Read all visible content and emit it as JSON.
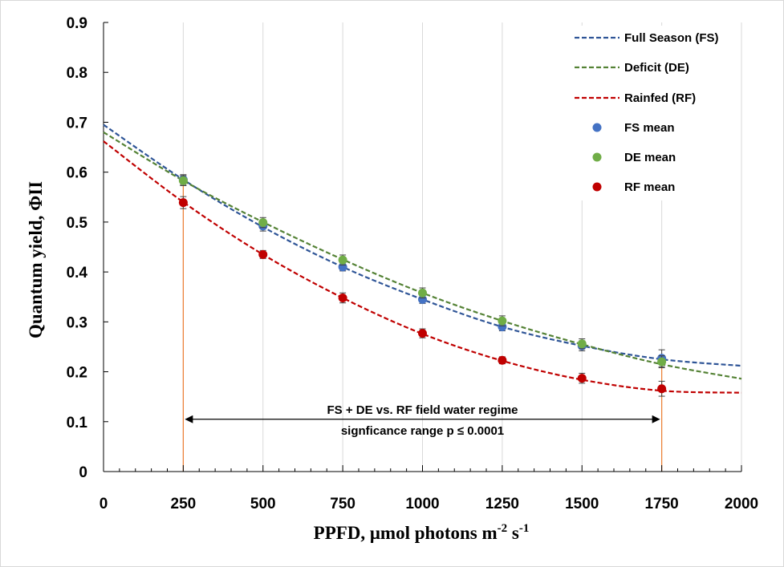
{
  "chart_data": {
    "type": "scatter",
    "xlabel": "PPFD, μmol photons m",
    "xlabel_sup1": "-2",
    "xlabel_mid": " s",
    "xlabel_sup2": "-1",
    "ylabel": "Quantum yield, ΦII",
    "xlim": [
      0,
      2000
    ],
    "ylim": [
      0,
      0.9
    ],
    "x_ticks": [
      0,
      250,
      500,
      750,
      1000,
      1250,
      1500,
      1750,
      2000
    ],
    "x_tick_labels": [
      "0",
      "250",
      "500",
      "750",
      "1000",
      "1250",
      "1500",
      "1750",
      "2000"
    ],
    "y_ticks": [
      0,
      0.1,
      0.2,
      0.3,
      0.4,
      0.5,
      0.6,
      0.7,
      0.8,
      0.9
    ],
    "y_tick_labels": [
      "0",
      "0.1",
      "0.2",
      "0.3",
      "0.4",
      "0.5",
      "0.6",
      "0.7",
      "0.8",
      "0.9"
    ],
    "grid": "vertical",
    "legend_position": "top-right",
    "x": [
      250,
      500,
      750,
      1000,
      1250,
      1500,
      1750
    ],
    "fits": [
      {
        "name": "Full Season (FS)",
        "color": "#2f5597",
        "x": [
          0,
          250,
          500,
          750,
          1000,
          1250,
          1500,
          1750,
          2000
        ],
        "y": [
          0.695,
          0.585,
          0.49,
          0.41,
          0.345,
          0.29,
          0.252,
          0.225,
          0.212
        ]
      },
      {
        "name": "Deficit (DE)",
        "color": "#548235",
        "x": [
          0,
          250,
          500,
          750,
          1000,
          1250,
          1500,
          1750,
          2000
        ],
        "y": [
          0.68,
          0.583,
          0.5,
          0.425,
          0.358,
          0.302,
          0.255,
          0.215,
          0.186
        ]
      },
      {
        "name": "Rainfed (RF)",
        "color": "#c00000",
        "x": [
          0,
          250,
          500,
          750,
          1000,
          1250,
          1500,
          1750,
          2000
        ],
        "y": [
          0.662,
          0.54,
          0.435,
          0.348,
          0.276,
          0.222,
          0.184,
          0.162,
          0.158
        ]
      }
    ],
    "series": [
      {
        "name": "FS mean",
        "color": "#4472c4",
        "values": [
          0.585,
          0.492,
          0.41,
          0.345,
          0.29,
          0.252,
          0.227
        ],
        "errors": [
          0.01,
          0.01,
          0.008,
          0.008,
          0.008,
          0.01,
          0.017
        ]
      },
      {
        "name": "DE mean",
        "color": "#70ad47",
        "values": [
          0.583,
          0.499,
          0.424,
          0.358,
          0.302,
          0.256,
          0.22
        ],
        "errors": [
          0.01,
          0.01,
          0.01,
          0.01,
          0.01,
          0.01,
          0.012
        ]
      },
      {
        "name": "RF mean",
        "color": "#c00000",
        "values": [
          0.539,
          0.435,
          0.348,
          0.277,
          0.223,
          0.187,
          0.166
        ],
        "errors": [
          0.012,
          0.008,
          0.01,
          0.009,
          0.007,
          0.01,
          0.015
        ]
      }
    ],
    "significance_lines": [
      250,
      1750
    ],
    "significance_line_color": "#ed7d31",
    "annotation": {
      "line1": "FS + DE vs. RF field water regime",
      "line2": "signficance range p ≤ 0.0001",
      "arrow_x": [
        250,
        1750
      ],
      "arrow_y": 0.1
    }
  }
}
